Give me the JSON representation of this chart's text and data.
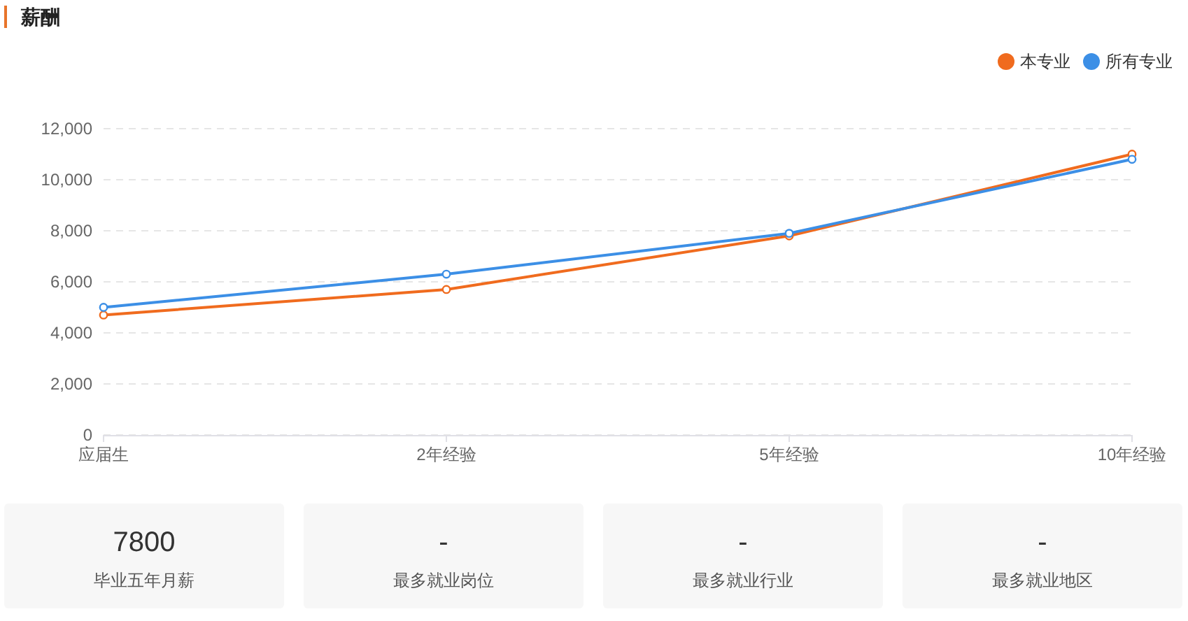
{
  "chart_data": [
    {
      "type": "line",
      "title": "薪酬",
      "categories": [
        "应届生",
        "2年经验",
        "5年经验",
        "10年经验"
      ],
      "series": [
        {
          "name": "本专业",
          "color": "#f06b1e",
          "values": [
            4700,
            5700,
            7800,
            11000
          ]
        },
        {
          "name": "所有专业",
          "color": "#3c8fe6",
          "values": [
            5000,
            6300,
            7900,
            10800
          ]
        }
      ],
      "ylim": [
        0,
        12000
      ],
      "yticks": [
        0,
        {
          "value": 2000,
          "label": "2,000"
        },
        {
          "value": 4000,
          "label": "4,000"
        },
        {
          "value": 6000,
          "label": "6,000"
        },
        {
          "value": 8000,
          "label": "8,000"
        },
        {
          "value": 10000,
          "label": "10,000"
        },
        {
          "value": 12000,
          "label": "12,000"
        }
      ],
      "grid": "y",
      "legend": "top right",
      "marker": "circle",
      "line_style": "solid"
    },
    {
      "type": "other",
      "title": "毕业五年月薪",
      "annotations": [
        "7800"
      ]
    },
    {
      "type": "other",
      "title": "最多就业岗位",
      "annotations": [
        "-"
      ]
    },
    {
      "type": "other",
      "title": "最多就业行业",
      "annotations": [
        "-"
      ]
    },
    {
      "type": "other",
      "title": "最多就业地区",
      "annotations": [
        "-"
      ]
    }
  ]
}
